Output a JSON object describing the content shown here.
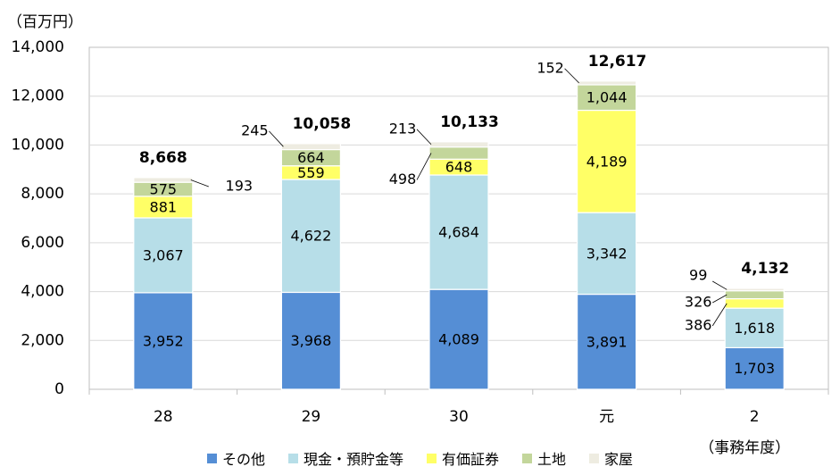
{
  "chart_data": {
    "type": "bar",
    "stacked": true,
    "ylabel": "（百万円）",
    "xlabel": "（事務年度）",
    "ylim": [
      0,
      14000
    ],
    "yticks": [
      0,
      2000,
      4000,
      6000,
      8000,
      10000,
      12000,
      14000
    ],
    "ytick_labels": [
      "0",
      "2,000",
      "4,000",
      "6,000",
      "8,000",
      "10,000",
      "12,000",
      "14,000"
    ],
    "grid": true,
    "legend_position": "bottom",
    "categories": [
      "28",
      "29",
      "30",
      "元",
      "2"
    ],
    "series": [
      {
        "name": "その他",
        "color": "#558ED5",
        "values": [
          3952,
          3968,
          4089,
          3891,
          1703
        ],
        "labels": [
          "3,952",
          "3,968",
          "4,089",
          "3,891",
          "1,703"
        ]
      },
      {
        "name": "現金・預貯金等",
        "color": "#B7DEE8",
        "values": [
          3067,
          4622,
          4684,
          3342,
          1618
        ],
        "labels": [
          "3,067",
          "4,622",
          "4,684",
          "3,342",
          "1,618"
        ]
      },
      {
        "name": "有価証券",
        "color": "#FFFF66",
        "values": [
          881,
          559,
          648,
          4189,
          386
        ],
        "labels": [
          "881",
          "559",
          "648",
          "4,189",
          "386"
        ]
      },
      {
        "name": "土地",
        "color": "#C3D69B",
        "values": [
          575,
          664,
          498,
          1044,
          326
        ],
        "labels": [
          "575",
          "664",
          "498",
          "1,044",
          "326"
        ]
      },
      {
        "name": "家屋",
        "color": "#EEECE1",
        "values": [
          193,
          245,
          213,
          152,
          99
        ],
        "labels": [
          "193",
          "245",
          "213",
          "152",
          "99"
        ]
      }
    ],
    "totals": [
      8668,
      10058,
      10133,
      12617,
      4132
    ],
    "total_labels": [
      "8,668",
      "10,058",
      "10,133",
      "12,617",
      "4,132"
    ]
  }
}
